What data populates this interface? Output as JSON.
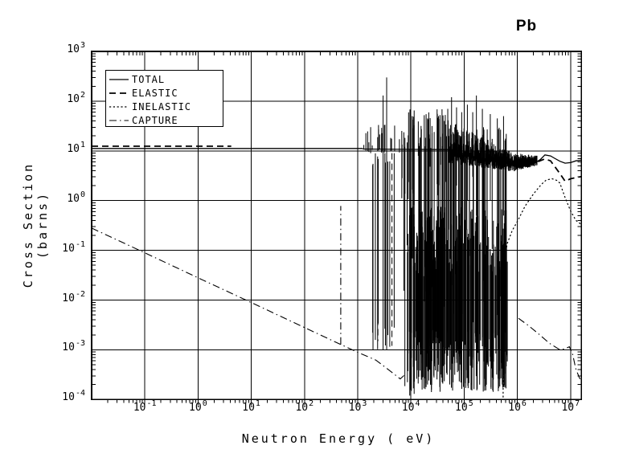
{
  "chart_data": {
    "type": "line",
    "title": "Pb",
    "xlabel": "Neutron Energy ( eV)",
    "ylabel": "Cross Section (barns)",
    "x_scale": "log",
    "y_scale": "log",
    "xlim": [
      0.01,
      16000000
    ],
    "ylim": [
      0.0001,
      1000
    ],
    "grid": true,
    "tick_base": "10",
    "x_tick_exponents": [
      -1,
      0,
      1,
      2,
      3,
      4,
      5,
      6,
      7
    ],
    "y_tick_exponents": [
      3,
      2,
      1,
      0,
      -1,
      -2,
      -3,
      -4
    ],
    "colors": {
      "foreground": "#000000",
      "background": "#ffffff"
    },
    "legend": {
      "position": "top-left",
      "items": [
        {
          "label": "TOTAL",
          "style": "solid"
        },
        {
          "label": "ELASTIC",
          "style": "long-dash"
        },
        {
          "label": "INELASTIC",
          "style": "short-dash"
        },
        {
          "label": "CAPTURE",
          "style": "dash-dot"
        }
      ]
    },
    "series": [
      {
        "name": "TOTAL",
        "style": "solid",
        "segments": [
          [
            [
              0.01,
              11.2
            ],
            [
              1250,
              11.2
            ]
          ],
          [
            [
              1250,
              10.9
            ],
            [
              55000,
              10.6
            ]
          ],
          [
            [
              2350000,
              6.1
            ],
            [
              2700000,
              6.7
            ],
            [
              3300000,
              8.3
            ],
            [
              4200000,
              7.9
            ],
            [
              5000000,
              7.1
            ],
            [
              6300000,
              6.2
            ],
            [
              7900000,
              5.65
            ],
            [
              10000000,
              5.8
            ],
            [
              12600000,
              6.3
            ],
            [
              16000000,
              6.5
            ]
          ]
        ]
      },
      {
        "name": "ELASTIC",
        "style": "long-dash",
        "segments": [
          [
            [
              0.01,
              12.4
            ],
            [
              4.2,
              12.4
            ]
          ],
          [
            [
              2450000,
              6.1
            ],
            [
              3300000,
              6.9
            ],
            [
              4200000,
              6.3
            ],
            [
              5000000,
              4.9
            ],
            [
              6300000,
              3.5
            ],
            [
              7900000,
              2.45
            ],
            [
              10000000,
              2.75
            ],
            [
              12600000,
              2.9
            ],
            [
              16000000,
              3.05
            ]
          ]
        ]
      },
      {
        "name": "INELASTIC",
        "style": "short-dash",
        "segments": [
          [
            [
              540000,
              0.00011
            ],
            [
              540000,
              0.05
            ],
            [
              650000,
              0.14
            ],
            [
              800000,
              0.25
            ],
            [
              1000000,
              0.38
            ],
            [
              1400000,
              0.78
            ],
            [
              2000000,
              1.35
            ],
            [
              2800000,
              2.1
            ],
            [
              3500000,
              2.6
            ],
            [
              4500000,
              2.75
            ],
            [
              5500000,
              2.55
            ],
            [
              6300000,
              2.25
            ],
            [
              7900000,
              1.15
            ],
            [
              10000000,
              0.62
            ],
            [
              12600000,
              0.4
            ],
            [
              16000000,
              0.33
            ]
          ]
        ]
      },
      {
        "name": "CAPTURE",
        "style": "dash-dot",
        "segments": [
          [
            [
              0.01,
              0.28
            ],
            [
              0.1,
              0.089
            ],
            [
              1,
              0.028
            ],
            [
              10,
              0.0089
            ],
            [
              100,
              0.0028
            ],
            [
              480,
              0.00128
            ],
            [
              1000,
              0.00089
            ],
            [
              2200,
              0.00062
            ],
            [
              4000,
              0.00038
            ],
            [
              6300,
              0.00026
            ],
            [
              7800,
              0.00032
            ]
          ],
          [
            [
              480,
              0.00128
            ],
            [
              480,
              0.78
            ]
          ],
          [
            [
              1050000,
              0.0043
            ],
            [
              1600000,
              0.0031
            ],
            [
              2500000,
              0.0021
            ],
            [
              4000000,
              0.00135
            ],
            [
              6300000,
              0.001
            ],
            [
              7900000,
              0.00105
            ],
            [
              9500000,
              0.00115
            ],
            [
              11000000,
              0.0008
            ],
            [
              12500000,
              0.00042
            ],
            [
              14500000,
              0.00028
            ],
            [
              16000000,
              0.00023
            ]
          ]
        ]
      }
    ],
    "resonance_spikes": {
      "explicit": [
        {
          "x": 1750,
          "top": 30,
          "bottom": 9,
          "style": "solid"
        },
        {
          "x": 2400,
          "top": 6,
          "bottom": 0.0015,
          "style": "long-dash"
        },
        {
          "x": 3000,
          "top": 130,
          "bottom": 0.001,
          "style": "solid"
        },
        {
          "x": 3500,
          "top": 300,
          "bottom": 0.001,
          "style": "solid"
        },
        {
          "x": 4400,
          "top": 9,
          "bottom": 0.0012,
          "style": "long-dash"
        },
        {
          "x": 9500,
          "top": 11,
          "bottom": 0.00012,
          "style": "solid"
        },
        {
          "x": 11500,
          "top": 65,
          "bottom": 0.00013,
          "style": "solid"
        },
        {
          "x": 20500,
          "top": 45,
          "bottom": 0.0002,
          "style": "solid"
        },
        {
          "x": 33000,
          "top": 50,
          "bottom": 0.0005,
          "style": "solid"
        },
        {
          "x": 58000,
          "top": 120,
          "bottom": 0.02,
          "style": "solid"
        },
        {
          "x": 72000,
          "top": 75,
          "bottom": 2,
          "style": "solid"
        },
        {
          "x": 90000,
          "top": 60,
          "bottom": 0.01,
          "style": "solid"
        },
        {
          "x": 115000,
          "top": 85,
          "bottom": 1,
          "style": "solid"
        },
        {
          "x": 145000,
          "top": 60,
          "bottom": 3,
          "style": "solid"
        },
        {
          "x": 170000,
          "top": 130,
          "bottom": 0.5,
          "style": "solid"
        },
        {
          "x": 220000,
          "top": 70,
          "bottom": 0.01,
          "style": "solid"
        },
        {
          "x": 310000,
          "top": 55,
          "bottom": 1,
          "style": "solid"
        },
        {
          "x": 420000,
          "top": 45,
          "bottom": 0.005,
          "style": "solid"
        },
        {
          "x": 550000,
          "top": 50,
          "bottom": 0.5,
          "style": "solid"
        }
      ],
      "bands": [
        {
          "x": [
            1250,
            6300
          ],
          "n": 18,
          "top": [
            12,
            40
          ],
          "bottom": [
            9,
            11
          ],
          "seed": 11,
          "fill": "random"
        },
        {
          "x": [
            1900,
            6300
          ],
          "n": 10,
          "top": [
            5,
            12
          ],
          "bottom": [
            0.0008,
            0.004
          ],
          "seed": 22,
          "fill": "random"
        },
        {
          "x": [
            6500,
            55000
          ],
          "n": 60,
          "top": [
            11,
            70
          ],
          "bottom": [
            0.00015,
            8
          ],
          "seed": 33,
          "fill": "random"
        },
        {
          "x": [
            8500,
            650000
          ],
          "n": 250,
          "top": [
            0.03,
            0.8
          ],
          "bottom": [
            0.00014,
            0.0025
          ],
          "seed": 44,
          "fill": "random"
        },
        {
          "x": [
            55000,
            900000
          ],
          "n": 210,
          "top": [
            9,
            40
          ],
          "top2": [
            5.5,
            9
          ],
          "bottom": [
            5.5,
            9
          ],
          "bottom2": [
            3.8,
            5.2
          ],
          "seed": 55,
          "fill": "even"
        },
        {
          "x": [
            55000,
            650000
          ],
          "n": 45,
          "top": [
            8,
            30
          ],
          "bottom": [
            0.00015,
            0.3
          ],
          "seed": 66,
          "fill": "random"
        },
        {
          "x": [
            900000,
            2350000
          ],
          "n": 120,
          "top": [
            6,
            9
          ],
          "top2": [
            6,
            8
          ],
          "bottom": [
            4,
            5.2
          ],
          "bottom2": [
            5,
            6
          ],
          "seed": 77,
          "fill": "even"
        }
      ]
    }
  }
}
